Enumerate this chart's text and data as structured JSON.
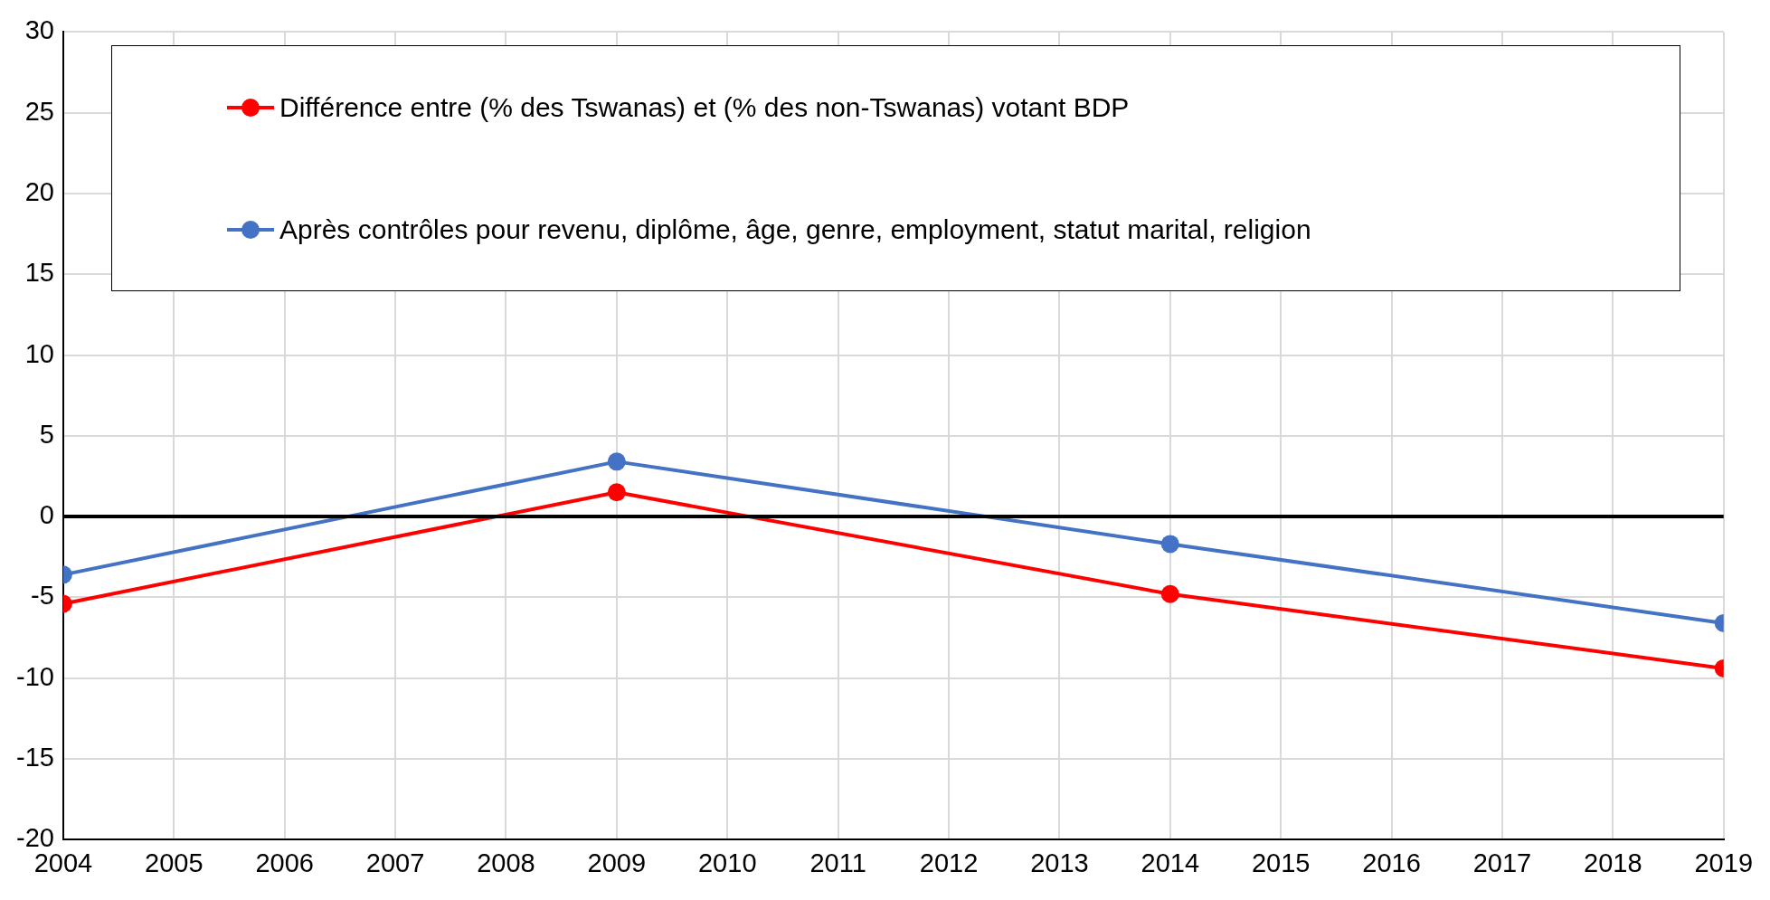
{
  "chart_data": {
    "type": "line",
    "x": [
      2004,
      2009,
      2014,
      2019
    ],
    "series": [
      {
        "name": "Différence entre (% des Tswanas) et (% des non-Tswanas) votant BDP",
        "color": "#ff0000",
        "values": [
          -5.4,
          1.5,
          -4.8,
          -9.4
        ]
      },
      {
        "name": "Après contrôles pour revenu, diplôme, âge, genre, employment, statut marital, religion",
        "color": "#4472c4",
        "values": [
          -3.6,
          3.4,
          -1.7,
          -6.6
        ]
      }
    ],
    "xlim": [
      2004,
      2019
    ],
    "xticks": [
      2004,
      2005,
      2006,
      2007,
      2008,
      2009,
      2010,
      2011,
      2012,
      2013,
      2014,
      2015,
      2016,
      2017,
      2018,
      2019
    ],
    "ylim": [
      -20,
      30
    ],
    "yticks": [
      -20,
      -15,
      -10,
      -5,
      0,
      5,
      10,
      15,
      20,
      25,
      30
    ],
    "ref_lines": [
      {
        "axis": "y",
        "value": 0,
        "color": "#000000"
      }
    ],
    "grid": true,
    "legend": "top",
    "marker": "circle",
    "line_style": "solid"
  }
}
